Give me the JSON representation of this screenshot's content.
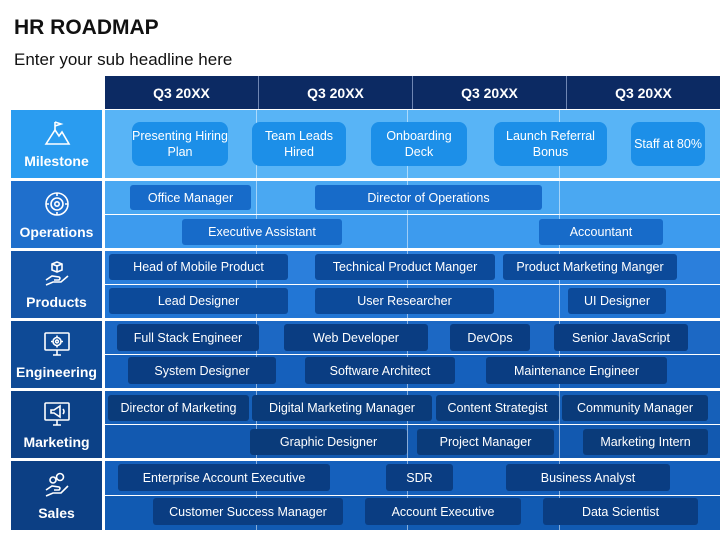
{
  "title": "HR ROADMAP",
  "subtitle": "Enter your sub headline here",
  "quarters": [
    "Q3 20XX",
    "Q3 20XX",
    "Q3 20XX",
    "Q3 20XX"
  ],
  "rows": {
    "milestone": {
      "label": "Milestone",
      "icon": "summit-flag-icon",
      "items": [
        "Presenting Hiring Plan",
        "Team Leads Hired",
        "Onboarding Deck",
        "Launch Referral Bonus",
        "Staff at 80%"
      ]
    },
    "operations": {
      "label": "Operations",
      "icon": "cycle-gear-icon",
      "items": [
        "Office Manager",
        "Director of Operations",
        "Executive Assistant",
        "Accountant"
      ]
    },
    "products": {
      "label": "Products",
      "icon": "product-box-hand-icon",
      "items": [
        "Head of Mobile Product",
        "Technical Product Manger",
        "Product Marketing Manger",
        "Lead Designer",
        "User Researcher",
        "UI Designer"
      ]
    },
    "engineering": {
      "label": "Engineering",
      "icon": "engineering-gear-monitor-icon",
      "items": [
        "Full Stack Engineer",
        "Web Developer",
        "DevOps",
        "Senior JavaScript",
        "System Designer",
        "Software Architect",
        "Maintenance Engineer"
      ]
    },
    "marketing": {
      "label": "Marketing",
      "icon": "megaphone-monitor-icon",
      "items": [
        "Director of Marketing",
        "Digital Marketing Manager",
        "Content Strategist",
        "Community Manager",
        "Graphic Designer",
        "Project Manager",
        "Marketing Intern"
      ]
    },
    "sales": {
      "label": "Sales",
      "icon": "sales-hand-coins-icon",
      "items": [
        "Enterprise Account Executive",
        "SDR",
        "Business Analyst",
        "Customer Success Manager",
        "Account Executive",
        "Data Scientist"
      ]
    }
  },
  "colors": {
    "header": "#0c2a63",
    "milestone": "#1c8fe8",
    "operations": "#176bc9",
    "products": "#0c4a9a",
    "engineering": "#0a3d82",
    "marketing": "#0a3b7a",
    "sales": "#0a3d82"
  }
}
